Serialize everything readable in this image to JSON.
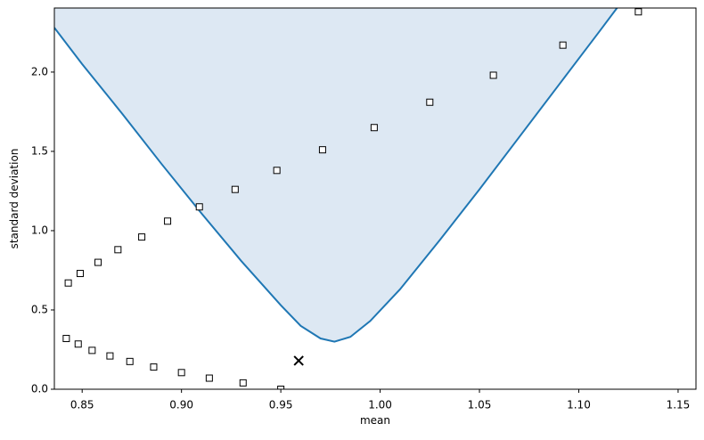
{
  "chart_data": {
    "type": "scatter",
    "xlabel": "mean",
    "ylabel": "standard deviation",
    "xlim": [
      0.836,
      1.159
    ],
    "ylim": [
      0,
      2.404
    ],
    "xticks": [
      0.85,
      {
        "value": 0.9,
        "label": "0.90"
      },
      0.95,
      {
        "value": 1.0,
        "label": "1.00"
      },
      1.05,
      {
        "value": 1.1,
        "label": "1.10"
      },
      1.15
    ],
    "yticks": [
      {
        "value": 0,
        "label": "0.0"
      },
      0.5,
      {
        "value": 1.0,
        "label": "1.0"
      },
      1.5,
      {
        "value": 2.0,
        "label": "2.0"
      }
    ],
    "curve": {
      "color": "#1f77b4",
      "fill_color": "#dde8f3",
      "x": [
        0.836,
        0.85,
        0.87,
        0.89,
        0.91,
        0.93,
        0.95,
        0.96,
        0.97,
        0.977,
        0.985,
        0.995,
        1.01,
        1.03,
        1.05,
        1.07,
        1.09,
        1.11,
        1.125
      ],
      "y": [
        2.28,
        2.05,
        1.74,
        1.42,
        1.11,
        0.81,
        0.53,
        0.4,
        0.32,
        0.3,
        0.33,
        0.43,
        0.63,
        0.94,
        1.26,
        1.59,
        1.92,
        2.25,
        2.5
      ]
    },
    "points": {
      "x": [
        0.843,
        0.849,
        0.858,
        0.868,
        0.88,
        0.893,
        0.909,
        0.927,
        0.948,
        0.971,
        0.997,
        1.025,
        1.057,
        1.092,
        1.13,
        0.842,
        0.848,
        0.855,
        0.864,
        0.874,
        0.886,
        0.9,
        0.914,
        0.931,
        0.95
      ],
      "y": [
        0.67,
        0.73,
        0.8,
        0.88,
        0.96,
        1.06,
        1.15,
        1.26,
        1.38,
        1.51,
        1.65,
        1.81,
        1.98,
        2.17,
        2.38,
        0.32,
        0.285,
        0.245,
        0.21,
        0.175,
        0.14,
        0.105,
        0.07,
        0.04,
        0.0
      ]
    },
    "marker": {
      "x": 0.959,
      "y": 0.18
    }
  }
}
